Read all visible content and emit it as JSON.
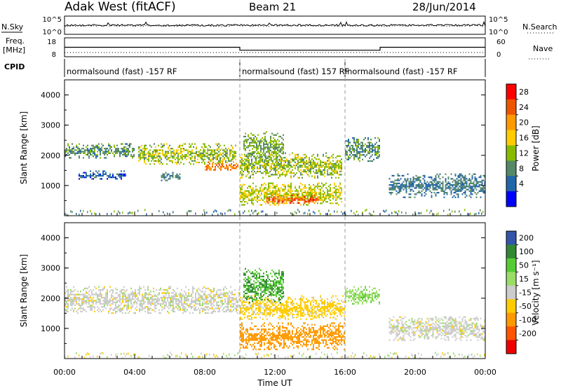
{
  "header": {
    "station": "Adak West (fitACF)",
    "beam": "Beam 21",
    "date": "28/Jun/2014"
  },
  "strip_labels": {
    "nsky": "N.Sky",
    "nsearch": "N.Search",
    "freq_line1": "Freq.",
    "freq_line2": "[MHz]",
    "nave": "Nave",
    "cpid": "CPID",
    "noise_ticks_left": [
      "10^5",
      "10^0"
    ],
    "noise_ticks_right": [
      "10^5",
      "10^0"
    ],
    "freq_ticks": [
      "18",
      "8"
    ],
    "nave_ticks": [
      "60",
      "0"
    ]
  },
  "cpid_segments": [
    {
      "label": "normalsound (fast) -157 RF",
      "start_hour": 0,
      "end_hour": 10
    },
    {
      "label": "normalsound (fast) 157 RF",
      "start_hour": 10,
      "end_hour": 16
    },
    {
      "label": "normalsound (fast) -157 RF",
      "start_hour": 16,
      "end_hour": 24
    }
  ],
  "panels": {
    "ylabel": "Slant Range [km]",
    "y_ticks": [
      "4000",
      "3000",
      "2000",
      "1000"
    ],
    "x_ticks": [
      "00:00",
      "04:00",
      "08:00",
      "12:00",
      "16:00",
      "20:00",
      "00:00"
    ],
    "xlabel": "Time UT"
  },
  "power_scale": {
    "label": "Power [dB]",
    "ticks": [
      "28",
      "24",
      "20",
      "16",
      "12",
      "8",
      "4"
    ],
    "colors": [
      "#ff0000",
      "#ee5500",
      "#ff9900",
      "#ffcc00",
      "#88bb00",
      "#558866",
      "#2266aa",
      "#0000ff"
    ]
  },
  "velocity_scale": {
    "label": "Velocity [m s⁻¹]",
    "ticks": [
      "200",
      "100",
      "50",
      "15",
      "-15",
      "-50",
      "-100",
      "-200"
    ],
    "colors": [
      "#3355aa",
      "#338833",
      "#55cc33",
      "#99dd66",
      "#cccccc",
      "#ffcc00",
      "#ff9900",
      "#ff5500",
      "#ee0000"
    ]
  },
  "chart_data": {
    "type": "heatmap",
    "title": "Adak West (fitACF) Beam 21 28/Jun/2014",
    "xlabel": "Time UT",
    "ylabel": "Slant Range [km]",
    "xlim": [
      "00:00",
      "24:00"
    ],
    "ylim": [
      0,
      4500
    ],
    "frequency_mhz": [
      {
        "start_hour": 0,
        "end_hour": 10,
        "value": 13
      },
      {
        "start_hour": 10,
        "end_hour": 18,
        "value": 11
      },
      {
        "start_hour": 18,
        "end_hour": 24,
        "value": 13
      }
    ],
    "power_echo_regions": [
      {
        "start_hour": 0.0,
        "end_hour": 4.0,
        "range_km": [
          1900,
          2400
        ],
        "power_db": 10
      },
      {
        "start_hour": 0.8,
        "end_hour": 3.5,
        "range_km": [
          1200,
          1500
        ],
        "power_db": 6
      },
      {
        "start_hour": 4.2,
        "end_hour": 9.8,
        "range_km": [
          1700,
          2400
        ],
        "power_db": 14
      },
      {
        "start_hour": 8.0,
        "end_hour": 9.9,
        "range_km": [
          1500,
          1800
        ],
        "power_db": 24
      },
      {
        "start_hour": 5.5,
        "end_hour": 6.6,
        "range_km": [
          1150,
          1450
        ],
        "power_db": 8
      },
      {
        "start_hour": 10.0,
        "end_hour": 15.8,
        "range_km": [
          1250,
          2100
        ],
        "power_db": 14
      },
      {
        "start_hour": 10.0,
        "end_hour": 15.8,
        "range_km": [
          350,
          1100
        ],
        "power_db": 16
      },
      {
        "start_hour": 11.5,
        "end_hour": 14.5,
        "range_km": [
          400,
          700
        ],
        "power_db": 26
      },
      {
        "start_hour": 10.2,
        "end_hour": 12.5,
        "range_km": [
          1800,
          2800
        ],
        "power_db": 12
      },
      {
        "start_hour": 16.0,
        "end_hour": 18.0,
        "range_km": [
          1800,
          2600
        ],
        "power_db": 10
      },
      {
        "start_hour": 18.5,
        "end_hour": 24.0,
        "range_km": [
          600,
          1400
        ],
        "power_db": 8
      }
    ],
    "velocity_echo_regions": [
      {
        "start_hour": 0.0,
        "end_hour": 10.0,
        "range_km": [
          1500,
          2400
        ],
        "velocity_ms": 0
      },
      {
        "start_hour": 10.0,
        "end_hour": 16.0,
        "range_km": [
          300,
          1200
        ],
        "velocity_ms": -75
      },
      {
        "start_hour": 10.0,
        "end_hour": 16.0,
        "range_km": [
          1300,
          2100
        ],
        "velocity_ms": -30
      },
      {
        "start_hour": 10.2,
        "end_hour": 12.5,
        "range_km": [
          1800,
          3000
        ],
        "velocity_ms": 100
      },
      {
        "start_hour": 16.0,
        "end_hour": 18.0,
        "range_km": [
          1800,
          2400
        ],
        "velocity_ms": 40
      },
      {
        "start_hour": 18.5,
        "end_hour": 24.0,
        "range_km": [
          600,
          1400
        ],
        "velocity_ms": 0
      }
    ]
  }
}
